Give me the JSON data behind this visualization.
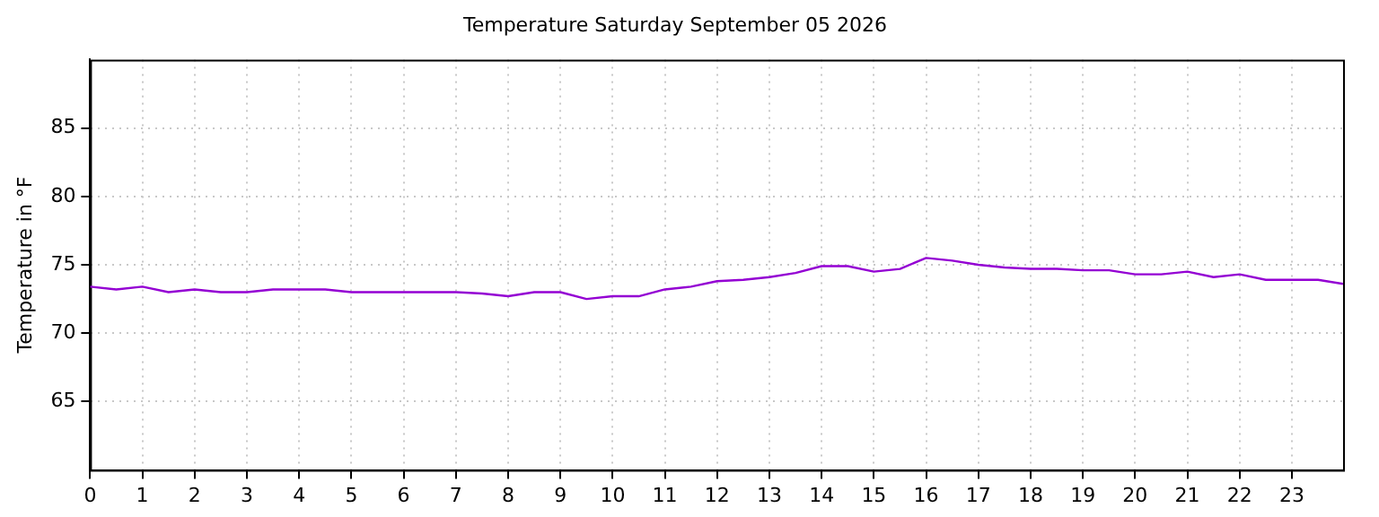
{
  "chart_data": {
    "type": "line",
    "title": "Temperature Saturday September 05 2026",
    "ylabel": "Temperature in °F",
    "x": [
      0,
      0.5,
      1,
      1.5,
      2,
      2.5,
      3,
      3.5,
      4,
      4.5,
      5,
      5.5,
      6,
      6.5,
      7,
      7.5,
      8,
      8.5,
      9,
      9.5,
      10,
      10.5,
      11,
      11.5,
      12,
      12.5,
      13,
      13.5,
      14,
      14.5,
      15,
      15.5,
      16,
      16.5,
      17,
      17.5,
      18,
      18.5,
      19,
      19.5,
      20,
      20.5,
      21,
      21.5,
      22,
      22.5,
      23,
      23.5,
      23.98
    ],
    "series": [
      {
        "color": "#9400d3",
        "values": [
          73.4,
          73.2,
          73.4,
          73.0,
          73.2,
          73.0,
          73.0,
          73.2,
          73.2,
          73.2,
          73.0,
          73.0,
          73.0,
          73.0,
          73.0,
          72.9,
          72.7,
          73.0,
          73.0,
          72.5,
          72.7,
          72.7,
          73.2,
          73.4,
          73.8,
          73.9,
          74.1,
          74.4,
          74.9,
          74.9,
          74.5,
          74.7,
          75.5,
          75.3,
          75.0,
          74.8,
          74.7,
          74.7,
          74.6,
          74.6,
          74.3,
          74.3,
          74.5,
          74.1,
          74.3,
          73.9,
          73.9,
          73.9,
          73.6
        ]
      }
    ],
    "xlim": [
      0,
      23.98
    ],
    "xticks": [
      0,
      1,
      2,
      3,
      4,
      5,
      6,
      7,
      8,
      9,
      10,
      11,
      12,
      13,
      14,
      15,
      16,
      17,
      18,
      19,
      20,
      21,
      22,
      23
    ],
    "ylim": [
      60,
      90
    ],
    "yticks": [
      65,
      70,
      75,
      80,
      85
    ],
    "grid": true,
    "legend": false,
    "marker": "none",
    "line_style": "solid"
  }
}
